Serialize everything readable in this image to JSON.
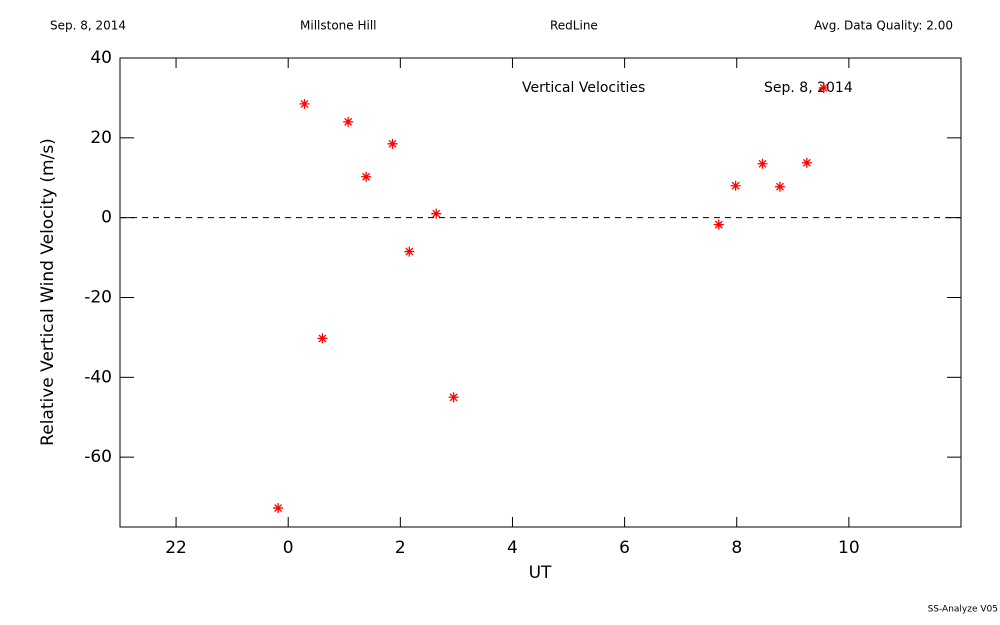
{
  "chart_data": {
    "type": "scatter",
    "header": [
      "Sep. 8, 2014",
      "Millstone Hill",
      "RedLine",
      "Avg. Data Quality: 2.00"
    ],
    "annotations": [
      "Vertical Velocities",
      "Sep. 8, 2014"
    ],
    "footer": "SS-Analyze V05",
    "xlabel": "UT",
    "ylabel": "Relative Vertical Wind Velocity (m/s)",
    "x": [
      -0.18,
      0.29,
      0.61,
      1.07,
      1.39,
      1.86,
      2.16,
      2.64,
      2.95,
      7.68,
      7.98,
      8.46,
      8.77,
      9.25,
      9.55
    ],
    "values": [
      -72.75,
      28.5,
      -30.25,
      24,
      10.25,
      18.5,
      -8.5,
      1,
      -45,
      -1.75,
      8,
      13.5,
      7.75,
      13.75,
      32.5
    ],
    "color": "#ff0000",
    "xlim": [
      -3,
      12
    ],
    "xticks": [
      {
        "value": -2,
        "label": "22"
      },
      0,
      2,
      4,
      6,
      8,
      10
    ],
    "ylim": [
      -77.5,
      40
    ],
    "yticks": [
      -60,
      -40,
      -20,
      0,
      20,
      40
    ]
  }
}
